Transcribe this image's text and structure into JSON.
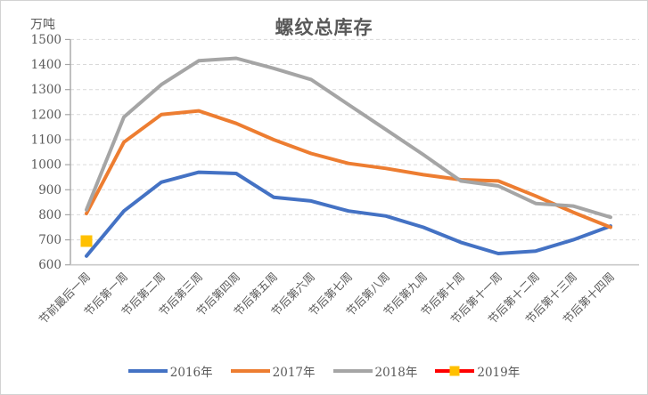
{
  "chart_data": {
    "type": "line",
    "title": "螺纹总库存",
    "ylabel": "万吨",
    "xlabel": "",
    "ylim": [
      600,
      1500
    ],
    "yticks": [
      600,
      700,
      800,
      900,
      1000,
      1100,
      1200,
      1300,
      1400,
      1500
    ],
    "grid": "horizontal-dashed",
    "legend_position": "bottom",
    "text_color": "#595959",
    "gridline_color": "#D9D9D9",
    "axis_color": "#A6A6A6",
    "categories": [
      "节前最后一周",
      "节后第一周",
      "节后第二周",
      "节后第三周",
      "节后第四周",
      "节后第五周",
      "节后第六周",
      "节后第七周",
      "节后第八周",
      "节后第九周",
      "节后第十周",
      "节后第十一周",
      "节后第十二周",
      "节后第十三周",
      "节后第十四周"
    ],
    "series": [
      {
        "name": "2016年",
        "color": "#4472C4",
        "values": [
          635,
          815,
          930,
          970,
          965,
          870,
          855,
          815,
          795,
          750,
          690,
          645,
          655,
          700,
          755
        ]
      },
      {
        "name": "2017年",
        "color": "#ED7D31",
        "values": [
          805,
          1090,
          1200,
          1215,
          1165,
          1100,
          1045,
          1005,
          985,
          960,
          940,
          935,
          875,
          810,
          750
        ]
      },
      {
        "name": "2018年",
        "color": "#A5A5A5",
        "values": [
          820,
          1190,
          1320,
          1415,
          1425,
          1385,
          1340,
          1240,
          1140,
          1040,
          935,
          915,
          845,
          835,
          790
        ]
      },
      {
        "name": "2019年",
        "color": "#FF0000",
        "marker": "square",
        "marker_color": "#FFC000",
        "values": [
          695,
          null,
          null,
          null,
          null,
          null,
          null,
          null,
          null,
          null,
          null,
          null,
          null,
          null,
          null
        ]
      }
    ]
  }
}
